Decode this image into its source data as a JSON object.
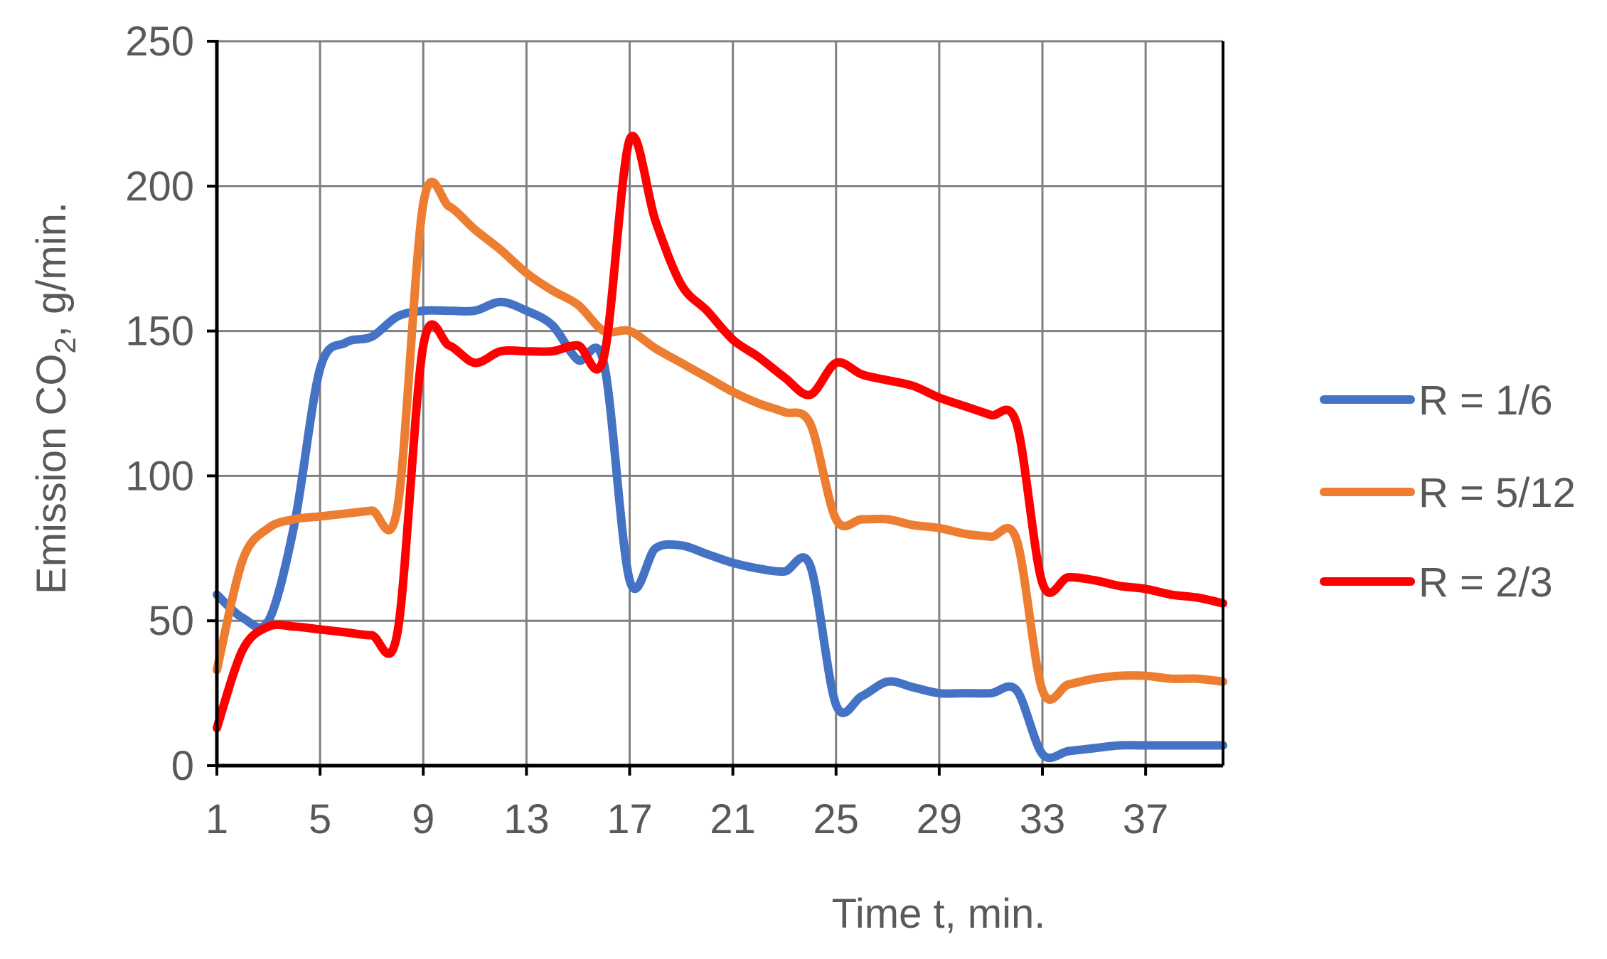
{
  "chart_data": {
    "type": "line",
    "title": "",
    "xlabel": "Time t, min.",
    "ylabel_main": "Emission CO",
    "ylabel_sub": "2",
    "ylabel_tail": ", g/min.",
    "xlim": [
      1,
      40
    ],
    "ylim": [
      0,
      250
    ],
    "x_ticks": [
      1,
      5,
      9,
      13,
      17,
      21,
      25,
      29,
      33,
      37
    ],
    "y_ticks": [
      0,
      50,
      100,
      150,
      200,
      250
    ],
    "grid": true,
    "legend_position": "right",
    "x": [
      1,
      2,
      3,
      4,
      5,
      6,
      7,
      8,
      9,
      10,
      11,
      12,
      13,
      14,
      15,
      16,
      17,
      18,
      19,
      20,
      21,
      22,
      23,
      24,
      25,
      26,
      27,
      28,
      29,
      30,
      31,
      32,
      33,
      34,
      35,
      36,
      37,
      38,
      39,
      40
    ],
    "series": [
      {
        "name": "R = 1/6",
        "color": "#4472C4",
        "values": [
          59,
          51,
          50,
          83,
          137,
          146,
          148,
          155,
          157,
          157,
          157,
          160,
          157,
          152,
          140,
          139,
          64,
          75,
          76,
          73,
          70,
          68,
          67,
          69,
          21,
          24,
          29,
          27,
          25,
          25,
          25,
          26,
          4,
          5,
          6,
          7,
          7,
          7,
          7,
          7
        ]
      },
      {
        "name": "R = 5/12",
        "color": "#ED7D31",
        "values": [
          33,
          71,
          82,
          85,
          86,
          87,
          88,
          89,
          194,
          193,
          185,
          178,
          170,
          164,
          159,
          150,
          150,
          144,
          139,
          134,
          129,
          125,
          122,
          118,
          85,
          85,
          85,
          83,
          82,
          80,
          79,
          78,
          26,
          28,
          30,
          31,
          31,
          30,
          30,
          29
        ]
      },
      {
        "name": "R = 2/3",
        "color": "#FF0000",
        "values": [
          13,
          40,
          48,
          48,
          47,
          46,
          45,
          46,
          145,
          145,
          139,
          143,
          143,
          143,
          145,
          141,
          216,
          188,
          166,
          157,
          147,
          141,
          134,
          128,
          139,
          135,
          133,
          131,
          127,
          124,
          121,
          118,
          63,
          65,
          64,
          62,
          61,
          59,
          58,
          56
        ]
      }
    ]
  }
}
